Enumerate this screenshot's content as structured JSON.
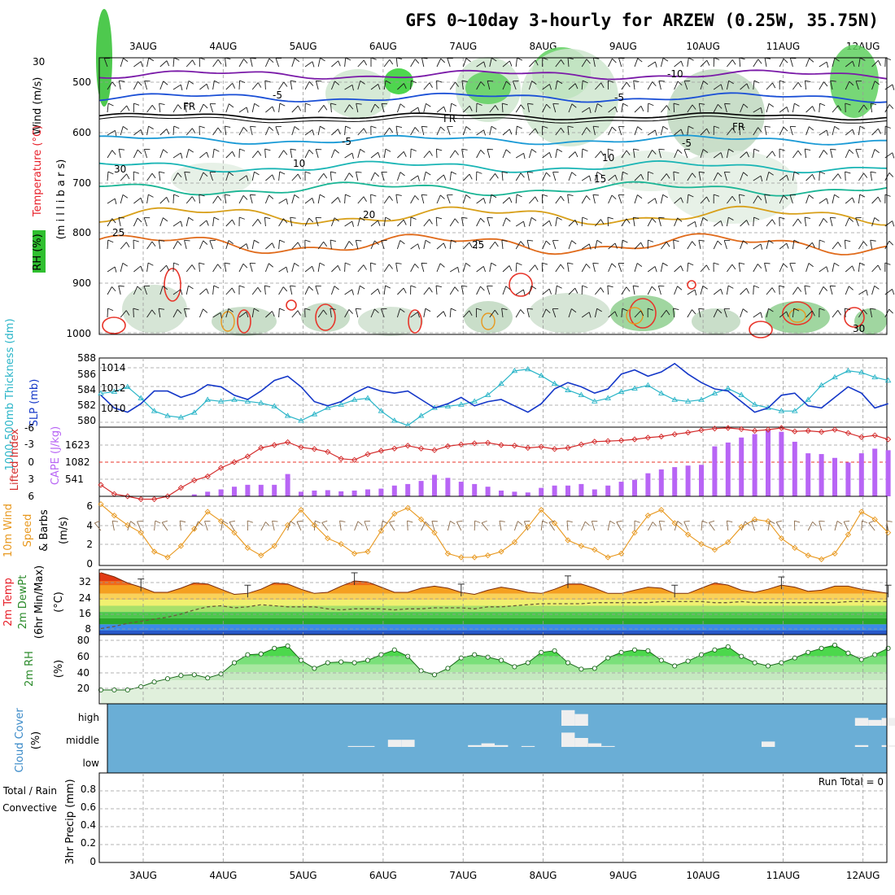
{
  "title": "GFS 0~10day 3-hourly for ARZEW (0.25W, 35.75N)",
  "colors": {
    "wind": "#6b0fa8",
    "temperature": "#e8202a",
    "rh_green": "#2fbf2f",
    "slp": "#1437c8",
    "thickness": "#2ab5c8",
    "lifted": "#d42c2c",
    "cape": "#b865f5",
    "wind10": "#e8981e",
    "barb": "#8a6a4a",
    "dewpt": "#6a5a3a",
    "rh2m_fill": "#2fcf2f",
    "cloud_bg": "#6aaed6",
    "cloud_cell": "#efefef",
    "precip_total": "#2fa82f",
    "precip_conv": "#d42c2c"
  },
  "x_axis": {
    "labels": [
      "3AUG",
      "4AUG",
      "5AUG",
      "6AUG",
      "7AUG",
      "8AUG",
      "9AUG",
      "10AUG",
      "11AUG",
      "12AUG"
    ]
  },
  "panels": {
    "upper": {
      "ylabel_parts": [
        {
          "text": "Wind (m/s)",
          "color": "#000000"
        },
        {
          "text": "Temperature (°C)",
          "color": "#e8202a"
        },
        {
          "text": "RH (%)",
          "color": "#000000"
        }
      ],
      "ylabel2": "(m i l l i b a r s)",
      "ticks": [
        "500",
        "600",
        "700",
        "800",
        "900",
        "1000"
      ],
      "contour_labels": [
        "-10",
        "-5",
        "-5",
        "FR",
        "FR",
        "FR",
        "-5",
        "-5",
        "10",
        "10",
        "15",
        "20",
        "25",
        "25",
        "30",
        "30",
        "30"
      ]
    },
    "slp": {
      "ylabel_thick": "1000-500mb Thickness (dm)",
      "ylabel_slp": "SLP (mb)",
      "ticks_left": [
        "588",
        "586",
        "584",
        "582",
        "580"
      ],
      "ticks_right": [
        "1014",
        "1012",
        "1010"
      ]
    },
    "cape": {
      "ylabel_lifted": "Lifted Index",
      "ylabel_cape": "CAPE (J/kg)",
      "ticks_left": [
        "-6",
        "-3",
        "0",
        "3",
        "6"
      ],
      "ticks_right": [
        "1623",
        "1082",
        "541"
      ]
    },
    "wind10": {
      "ylabel1": "10m Wind",
      "ylabel2": "Speed",
      "ylabel3": "& Barbs",
      "ylabel4": "(m/s)",
      "ticks": [
        "6",
        "4",
        "2",
        "0"
      ]
    },
    "temp2m": {
      "ylabel1": "2m Temp",
      "ylabel2": "2m DewPt",
      "ylabel3": "(6hr Min/Max)",
      "ylabel4": "(°C)",
      "ticks": [
        "32",
        "24",
        "16",
        "8"
      ]
    },
    "rh2m": {
      "ylabel1": "2m RH",
      "ylabel2": "(%)",
      "ticks": [
        "80",
        "60",
        "40",
        "20"
      ]
    },
    "cloud": {
      "ylabel1": "Cloud Cover",
      "ylabel2": "(%)",
      "levels": [
        "high",
        "middle",
        "low"
      ]
    },
    "precip": {
      "ylabel_total": "Total / Rain",
      "ylabel_conv": "Convective",
      "ylabel_main": "3hr Precip (mm)",
      "ticks": [
        "0.8",
        "0.6",
        "0.4",
        "0.2",
        "0"
      ],
      "run_total": "Run Total = 0"
    }
  },
  "chart_data": [
    {
      "type": "line",
      "name": "1000-500mb Thickness (dm)",
      "x_unit": "3-hourly steps from 2 AUG 12Z",
      "values": [
        583.6,
        583.8,
        584.4,
        583.0,
        581.4,
        580.8,
        580.6,
        581.2,
        582.8,
        582.6,
        582.8,
        582.6,
        582.4,
        582.0,
        580.8,
        580.2,
        581.0,
        581.8,
        582.2,
        582.8,
        583.0,
        581.4,
        580.2,
        579.6,
        580.8,
        581.8,
        582.0,
        582.2,
        582.6,
        583.4,
        584.8,
        586.4,
        586.6,
        585.8,
        584.8,
        584.0,
        583.4,
        582.6,
        583.0,
        583.8,
        584.2,
        584.6,
        583.6,
        582.8,
        582.6,
        582.8,
        583.6,
        584.2,
        583.4,
        582.2,
        581.8,
        581.4,
        581.4,
        582.8,
        584.6,
        585.6,
        586.4,
        586.2,
        585.6,
        585.2
      ]
    },
    {
      "type": "line",
      "name": "SLP (mb)",
      "values": [
        1011.4,
        1010.2,
        1009.8,
        1010.6,
        1011.8,
        1011.8,
        1011.2,
        1011.6,
        1012.4,
        1012.2,
        1011.4,
        1011.0,
        1011.8,
        1012.8,
        1013.2,
        1012.2,
        1010.8,
        1010.4,
        1010.8,
        1011.6,
        1012.2,
        1011.8,
        1011.6,
        1011.8,
        1011.0,
        1010.2,
        1010.6,
        1011.2,
        1010.4,
        1010.8,
        1011.0,
        1010.4,
        1009.8,
        1010.6,
        1012.0,
        1012.6,
        1012.2,
        1011.6,
        1012.0,
        1013.4,
        1013.8,
        1013.2,
        1013.6,
        1014.4,
        1013.4,
        1012.6,
        1012.0,
        1011.8,
        1010.8,
        1009.8,
        1010.2,
        1011.4,
        1011.6,
        1010.4,
        1010.2,
        1011.2,
        1012.2,
        1011.6,
        1010.2,
        1010.6
      ]
    },
    {
      "type": "line",
      "name": "Lifted Index",
      "values": [
        4.0,
        5.6,
        6.0,
        6.5,
        6.5,
        6.0,
        4.5,
        3.2,
        2.5,
        1.0,
        0,
        -1.0,
        -2.5,
        -3.0,
        -3.5,
        -2.6,
        -2.3,
        -1.8,
        -0.6,
        -0.4,
        -1.4,
        -2.0,
        -2.4,
        -2.9,
        -2.4,
        -2.1,
        -2.8,
        -3.1,
        -3.3,
        -3.4,
        -3.0,
        -2.9,
        -2.5,
        -2.7,
        -2.3,
        -2.5,
        -3.1,
        -3.6,
        -3.7,
        -3.8,
        -4.0,
        -4.3,
        -4.5,
        -4.9,
        -5.2,
        -5.6,
        -5.9,
        -6.0,
        -5.8,
        -5.5,
        -5.7,
        -6.0,
        -5.4,
        -5.5,
        -5.3,
        -5.7,
        -5.1,
        -4.4,
        -4.7,
        -4.0
      ]
    },
    {
      "type": "bar",
      "name": "CAPE (J/kg)",
      "values": [
        0,
        0,
        0,
        0,
        0,
        0,
        0,
        50,
        120,
        180,
        250,
        300,
        300,
        300,
        580,
        120,
        150,
        160,
        130,
        150,
        180,
        200,
        280,
        320,
        400,
        560,
        480,
        380,
        320,
        250,
        150,
        120,
        100,
        220,
        280,
        280,
        320,
        180,
        280,
        380,
        430,
        600,
        700,
        760,
        800,
        820,
        1300,
        1400,
        1530,
        1620,
        1720,
        1680,
        1420,
        1120,
        1100,
        1000,
        880,
        1120,
        1240,
        1200
      ]
    },
    {
      "type": "line",
      "name": "10m Wind Speed (m/s)",
      "values": [
        6.2,
        5.0,
        4.0,
        3.2,
        1.2,
        0.6,
        1.8,
        3.6,
        5.4,
        4.4,
        3.2,
        1.6,
        0.8,
        1.8,
        4.0,
        5.6,
        4.0,
        2.6,
        2.0,
        1.0,
        1.2,
        3.4,
        5.2,
        5.8,
        4.6,
        3.2,
        1.0,
        0.6,
        0.6,
        0.8,
        1.2,
        2.2,
        3.8,
        5.6,
        4.2,
        2.4,
        1.8,
        1.4,
        0.6,
        1.0,
        3.2,
        5.0,
        5.6,
        4.2,
        3.0,
        2.0,
        1.4,
        2.2,
        3.8,
        4.6,
        4.4,
        2.6,
        1.6,
        0.8,
        0.4,
        1.0,
        3.0,
        5.4,
        4.6,
        3.2
      ]
    },
    {
      "type": "area",
      "name": "2m Temp (°C)",
      "values": [
        36.0,
        34.0,
        31.0,
        29.0,
        26.5,
        26.5,
        28.5,
        31.0,
        30.5,
        28.0,
        25.5,
        26.0,
        28.0,
        31.0,
        30.5,
        28.0,
        26.0,
        26.5,
        29.5,
        32.0,
        31.5,
        29.0,
        26.5,
        26.5,
        28.5,
        29.5,
        28.5,
        26.5,
        25.5,
        27.5,
        29.0,
        28.0,
        26.5,
        26.0,
        28.0,
        30.5,
        30.5,
        28.5,
        26.0,
        26.0,
        27.5,
        29.0,
        28.5,
        26.0,
        26.0,
        28.5,
        31.0,
        30.0,
        27.5,
        26.5,
        28.0,
        30.0,
        29.0,
        27.0,
        27.5,
        29.5,
        29.5,
        28.0,
        27.0,
        26.0
      ]
    },
    {
      "type": "line",
      "name": "2m DewPt (°C)",
      "values": [
        9.0,
        10.0,
        11.5,
        12.5,
        13.5,
        14.5,
        16.0,
        18.0,
        19.5,
        20.0,
        19.0,
        19.5,
        20.5,
        20.0,
        19.5,
        19.5,
        19.5,
        18.5,
        18.0,
        18.5,
        18.5,
        18.5,
        18.0,
        18.5,
        18.5,
        19.0,
        19.0,
        19.0,
        18.5,
        19.5,
        19.5,
        20.0,
        20.5,
        21.0,
        21.0,
        21.0,
        21.0,
        21.5,
        21.5,
        21.5,
        21.5,
        21.5,
        22.0,
        22.0,
        22.0,
        22.0,
        21.5,
        21.5,
        22.0,
        21.5,
        21.5,
        21.5,
        21.5,
        21.5,
        21.5,
        21.5,
        22.0,
        22.0,
        22.0,
        22.0
      ]
    },
    {
      "type": "area",
      "name": "2m RH (%)",
      "values": [
        18,
        18,
        18,
        22,
        28,
        32,
        36,
        37,
        33,
        38,
        52,
        62,
        63,
        70,
        73,
        55,
        45,
        52,
        53,
        52,
        55,
        62,
        68,
        60,
        42,
        37,
        45,
        58,
        62,
        59,
        55,
        47,
        52,
        65,
        67,
        52,
        44,
        45,
        58,
        65,
        68,
        67,
        55,
        48,
        54,
        62,
        68,
        72,
        60,
        52,
        48,
        52,
        58,
        65,
        70,
        74,
        64,
        56,
        62,
        70
      ]
    },
    {
      "type": "heatmap",
      "name": "Cloud Cover (%)",
      "levels": [
        "high",
        "middle",
        "low"
      ],
      "values_mid": [
        0,
        0,
        0,
        0,
        0,
        0,
        0,
        0,
        0,
        0,
        0,
        0,
        0,
        0,
        0,
        0,
        0,
        0,
        0,
        5,
        5,
        0,
        40,
        40,
        0,
        0,
        0,
        0,
        10,
        20,
        10,
        0,
        5,
        0,
        0,
        80,
        50,
        20,
        5,
        0,
        0,
        0,
        0,
        0,
        0,
        0,
        0,
        0,
        0,
        0,
        30,
        0,
        0,
        0,
        0,
        0,
        0,
        10,
        0,
        10
      ],
      "values_high": [
        0,
        0,
        0,
        0,
        0,
        0,
        0,
        0,
        0,
        0,
        0,
        0,
        0,
        0,
        0,
        0,
        0,
        0,
        0,
        0,
        0,
        0,
        0,
        0,
        0,
        0,
        0,
        0,
        0,
        0,
        0,
        0,
        0,
        0,
        0,
        80,
        60,
        0,
        0,
        0,
        0,
        0,
        0,
        0,
        0,
        0,
        0,
        0,
        0,
        0,
        0,
        0,
        0,
        0,
        0,
        0,
        0,
        40,
        30,
        40
      ]
    },
    {
      "type": "bar",
      "name": "3hr Precip (mm)",
      "ylim": [
        0,
        1
      ],
      "values": [
        0,
        0,
        0,
        0,
        0,
        0,
        0,
        0,
        0,
        0,
        0,
        0,
        0,
        0,
        0,
        0,
        0,
        0,
        0,
        0,
        0,
        0,
        0,
        0,
        0,
        0,
        0,
        0,
        0,
        0,
        0,
        0,
        0,
        0,
        0,
        0,
        0,
        0,
        0,
        0,
        0,
        0,
        0,
        0,
        0,
        0,
        0,
        0,
        0,
        0,
        0,
        0,
        0,
        0,
        0,
        0,
        0,
        0,
        0,
        0
      ]
    }
  ]
}
